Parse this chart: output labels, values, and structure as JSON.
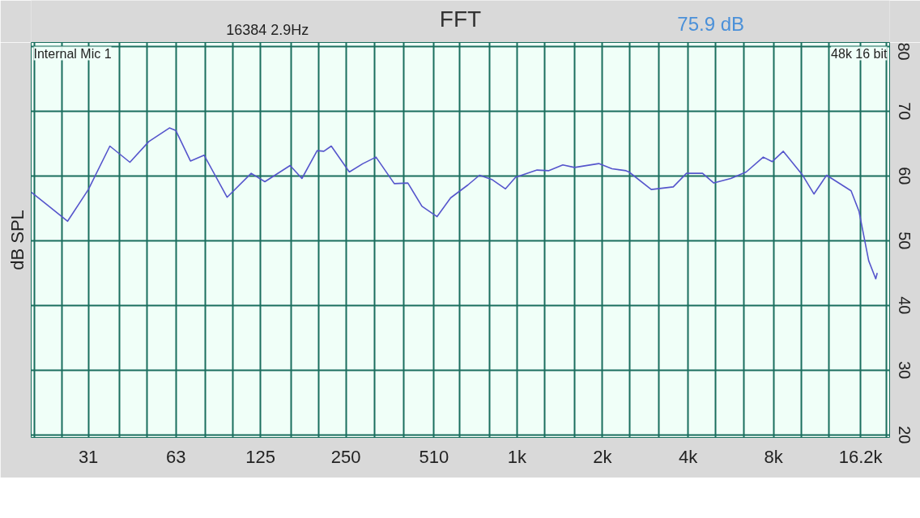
{
  "chart_data": {
    "type": "line",
    "title": "FFT",
    "ylabel": "dB SPL",
    "annotations": [
      "16384  2.9Hz",
      "75.9 dB",
      "Internal Mic 1",
      "48k 16 bit"
    ],
    "log": "x",
    "grid": true,
    "xlim": [
      19.5,
      20500
    ],
    "ylim": [
      19.6,
      80.6
    ],
    "xticks": [
      {
        "value": 20,
        "label": null
      },
      {
        "value": 25,
        "label": null
      },
      31,
      {
        "value": 40,
        "label": null
      },
      {
        "value": 50,
        "label": null
      },
      63,
      {
        "value": 80,
        "label": null
      },
      {
        "value": 100,
        "label": null
      },
      125,
      {
        "value": 160,
        "label": null
      },
      {
        "value": 200,
        "label": null
      },
      250,
      {
        "value": 315,
        "label": null
      },
      {
        "value": 400,
        "label": null
      },
      510,
      {
        "value": 630,
        "label": null
      },
      {
        "value": 800,
        "label": null
      },
      {
        "value": 1000,
        "label": "1k"
      },
      {
        "value": 1250,
        "label": null
      },
      {
        "value": 1600,
        "label": null
      },
      {
        "value": 2000,
        "label": "2k"
      },
      {
        "value": 2500,
        "label": null
      },
      {
        "value": 3150,
        "label": null
      },
      {
        "value": 4000,
        "label": "4k"
      },
      {
        "value": 5000,
        "label": null
      },
      {
        "value": 6300,
        "label": null
      },
      {
        "value": 8000,
        "label": "8k"
      },
      {
        "value": 10000,
        "label": null
      },
      {
        "value": 12500,
        "label": null
      },
      {
        "value": 16200,
        "label": "16.2k"
      },
      {
        "value": 20000,
        "label": null
      }
    ],
    "yticks": [
      20,
      30,
      40,
      50,
      60,
      70,
      80
    ],
    "series": [
      {
        "color": "#5555cc",
        "x": [
          19.5,
          26.2,
          31,
          36.9,
          43.4,
          50.6,
          59.8,
          63,
          70.9,
          79.2,
          95.4,
          116,
          129.6,
          159,
          175,
          198,
          209,
          222,
          257,
          287,
          319,
          370,
          413,
          463,
          523,
          584,
          672,
          738,
          819,
          911,
          989,
          1177,
          1291,
          1450,
          1595,
          1940,
          2160,
          2420,
          2480,
          2970,
          3550,
          3950,
          4500,
          4930,
          5660,
          6410,
          7360,
          7920,
          8660,
          10090,
          11100,
          12300,
          15000,
          16000,
          17300,
          18320,
          18540
        ],
        "values": [
          57.5,
          53.0,
          57.9,
          64.6,
          62.1,
          65.3,
          67.4,
          67.0,
          62.3,
          63.2,
          56.7,
          60.4,
          59.1,
          61.6,
          59.6,
          63.9,
          63.8,
          64.6,
          60.6,
          61.9,
          62.9,
          58.8,
          58.9,
          55.3,
          53.7,
          56.6,
          58.6,
          60.1,
          59.4,
          58.0,
          59.8,
          60.9,
          60.8,
          61.7,
          61.3,
          61.9,
          61.1,
          60.8,
          60.6,
          57.9,
          58.3,
          60.4,
          60.4,
          58.9,
          59.6,
          60.6,
          62.9,
          62.2,
          63.8,
          60.2,
          57.2,
          60.1,
          57.7,
          54.5,
          46.9,
          44.1,
          45.0
        ]
      }
    ]
  }
}
